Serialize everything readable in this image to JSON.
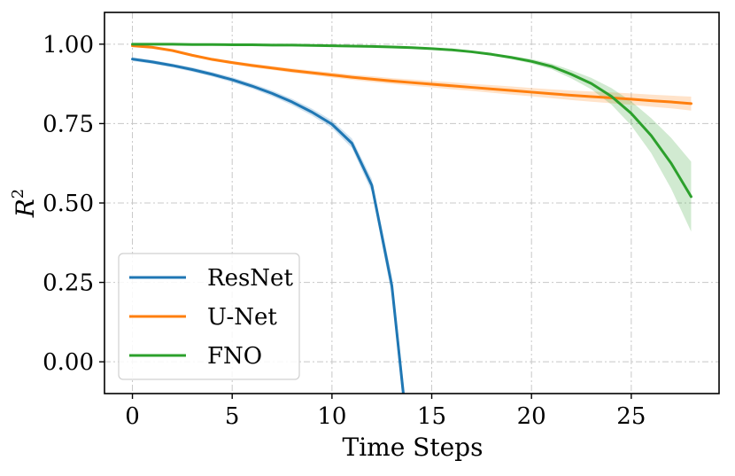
{
  "chart_data": {
    "type": "line",
    "title": "",
    "xlabel": "Time Steps",
    "ylabel": "R",
    "ylabel_superscript": "2",
    "xlim": [
      -1.4,
      29.4
    ],
    "ylim": [
      -0.1,
      1.1
    ],
    "xticks": [
      0,
      5,
      10,
      15,
      20,
      25
    ],
    "xtick_labels": [
      "0",
      "5",
      "10",
      "15",
      "20",
      "25"
    ],
    "yticks": [
      0.0,
      0.25,
      0.5,
      0.75,
      1.0
    ],
    "ytick_labels": [
      "0.00",
      "0.25",
      "0.50",
      "0.75",
      "1.00"
    ],
    "grid": true,
    "legend_position": "lower-left",
    "x": [
      0,
      1,
      2,
      3,
      4,
      5,
      6,
      7,
      8,
      9,
      10,
      11,
      12,
      13,
      14,
      15,
      16,
      17,
      18,
      19,
      20,
      21,
      22,
      23,
      24,
      25,
      26,
      27,
      28
    ],
    "series": [
      {
        "name": "ResNet",
        "color": "#1f77b4",
        "values": [
          0.953,
          0.944,
          0.933,
          0.92,
          0.905,
          0.888,
          0.868,
          0.845,
          0.818,
          0.786,
          0.748,
          0.688,
          0.555,
          0.24,
          -0.35,
          null,
          null,
          null,
          null,
          null,
          null,
          null,
          null,
          null,
          null,
          null,
          null,
          null,
          null
        ],
        "band": [
          0.006,
          0.006,
          0.006,
          0.007,
          0.007,
          0.008,
          0.008,
          0.009,
          0.01,
          0.011,
          0.012,
          0.015,
          0.02,
          0.03,
          0.05,
          null,
          null,
          null,
          null,
          null,
          null,
          null,
          null,
          null,
          null,
          null,
          null,
          null,
          null
        ]
      },
      {
        "name": "U-Net",
        "color": "#ff7f0e",
        "values": [
          0.995,
          0.99,
          0.98,
          0.965,
          0.952,
          0.942,
          0.933,
          0.925,
          0.917,
          0.91,
          0.903,
          0.896,
          0.89,
          0.884,
          0.879,
          0.874,
          0.869,
          0.864,
          0.859,
          0.854,
          0.849,
          0.844,
          0.839,
          0.835,
          0.831,
          0.827,
          0.822,
          0.818,
          0.813
        ],
        "band": [
          0.003,
          0.003,
          0.004,
          0.004,
          0.005,
          0.005,
          0.006,
          0.006,
          0.007,
          0.007,
          0.008,
          0.008,
          0.009,
          0.009,
          0.01,
          0.01,
          0.011,
          0.011,
          0.012,
          0.013,
          0.013,
          0.014,
          0.015,
          0.016,
          0.017,
          0.018,
          0.019,
          0.02,
          0.022
        ]
      },
      {
        "name": "FNO",
        "color": "#2ca02c",
        "values": [
          1.0,
          1.0,
          1.0,
          0.999,
          0.999,
          0.998,
          0.998,
          0.997,
          0.997,
          0.996,
          0.995,
          0.994,
          0.993,
          0.991,
          0.989,
          0.986,
          0.982,
          0.976,
          0.968,
          0.958,
          0.946,
          0.93,
          0.905,
          0.876,
          0.836,
          0.782,
          0.712,
          0.625,
          0.52
        ],
        "band": [
          0.0,
          0.0,
          0.0,
          0.0,
          0.0,
          0.0,
          0.0,
          0.0,
          0.0,
          0.0,
          0.0,
          0.0,
          0.0,
          0.001,
          0.001,
          0.002,
          0.002,
          0.003,
          0.004,
          0.005,
          0.007,
          0.009,
          0.013,
          0.018,
          0.026,
          0.038,
          0.055,
          0.08,
          0.11
        ]
      }
    ]
  }
}
